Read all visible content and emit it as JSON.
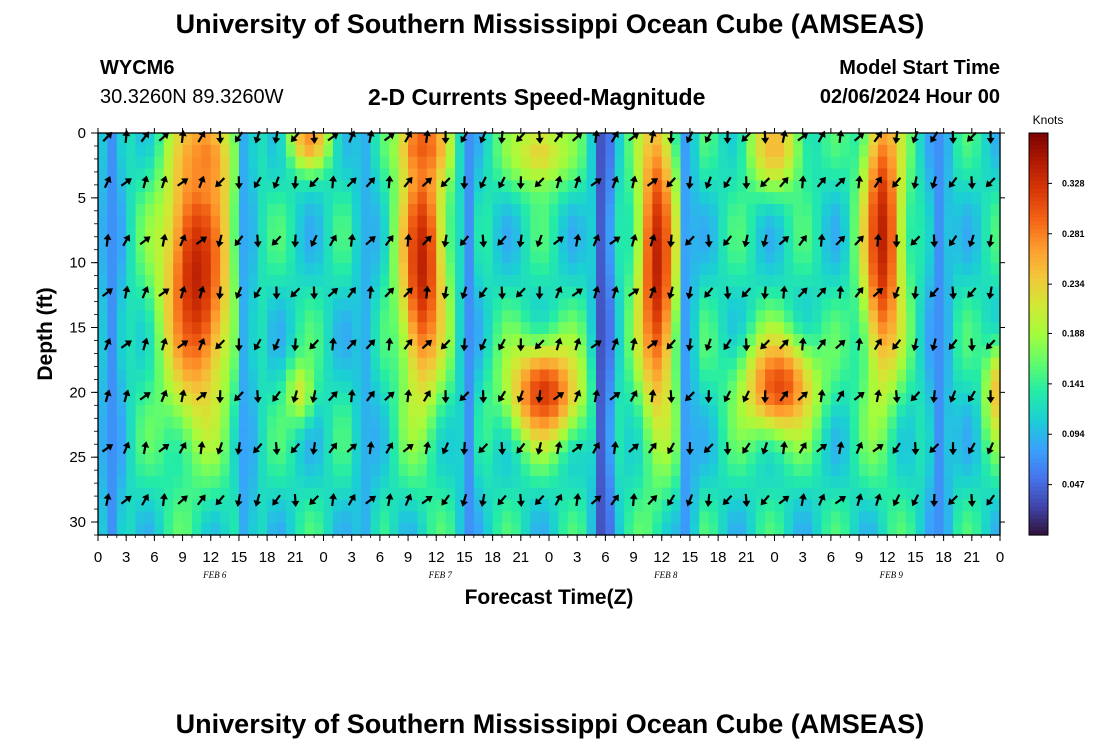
{
  "header": {
    "title": "University of Southern Mississippi Ocean Cube (AMSEAS)",
    "station_id": "WYCM6",
    "coords": "30.3260N  89.3260W",
    "plot_title": "2-D Currents Speed-Magnitude",
    "model_start_label": "Model Start Time",
    "model_start_value": "02/06/2024 Hour 00"
  },
  "footer": {
    "title": "University of Southern Mississippi Ocean Cube (AMSEAS)"
  },
  "chart_data": {
    "type": "heatmap",
    "title": "2-D Currents Speed-Magnitude",
    "xlabel": "Forecast Time(Z)",
    "ylabel": "Depth (ft)",
    "x_hours_range": [
      0,
      96
    ],
    "y_range": [
      0,
      31
    ],
    "x_tick_hours": [
      0,
      3,
      6,
      9,
      12,
      15,
      18,
      21,
      24,
      27,
      30,
      33,
      36,
      39,
      42,
      45,
      48,
      51,
      54,
      57,
      60,
      63,
      66,
      69,
      72,
      75,
      78,
      81,
      84,
      87,
      90,
      93,
      96
    ],
    "x_tick_labels": [
      "0",
      "3",
      "6",
      "9",
      "12",
      "15",
      "18",
      "21",
      "0",
      "3",
      "6",
      "9",
      "12",
      "15",
      "18",
      "21",
      "0",
      "3",
      "6",
      "9",
      "12",
      "15",
      "18",
      "21",
      "0",
      "3",
      "6",
      "9",
      "12",
      "15",
      "18",
      "21",
      "0"
    ],
    "date_labels": [
      {
        "hour": 12,
        "text": "FEB 6"
      },
      {
        "hour": 36,
        "text": "FEB 7"
      },
      {
        "hour": 60,
        "text": "FEB 8"
      },
      {
        "hour": 84,
        "text": "FEB 9"
      }
    ],
    "y_ticks": [
      0,
      5,
      10,
      15,
      20,
      25,
      30
    ],
    "colorbar": {
      "unit": "Knots",
      "range": [
        0,
        0.375
      ],
      "ticks": [
        0.047,
        0.094,
        0.141,
        0.188,
        0.234,
        0.281,
        0.328
      ],
      "colors": [
        "#30123b",
        "#4145ab",
        "#4675ed",
        "#39a2fc",
        "#1bcfd4",
        "#24eca6",
        "#61fc6c",
        "#a4fc3b",
        "#d1e834",
        "#f3c63a",
        "#fe9b2d",
        "#f36315",
        "#d93806",
        "#b11901",
        "#7a0403"
      ]
    },
    "hotspots": [
      {
        "hour": 10.5,
        "depth": 11,
        "rh": 3.8,
        "rd": 11.5,
        "value": 0.34
      },
      {
        "hour": 11.5,
        "depth": 2,
        "rh": 2.5,
        "rd": 4,
        "value": 0.28
      },
      {
        "hour": 22.5,
        "depth": 0.5,
        "rh": 2.2,
        "rd": 2.2,
        "value": 0.27
      },
      {
        "hour": 21.5,
        "depth": 20,
        "rh": 1.5,
        "rd": 2.5,
        "value": 0.21
      },
      {
        "hour": 34.5,
        "depth": 10,
        "rh": 2.5,
        "rd": 11,
        "value": 0.34
      },
      {
        "hour": 34.5,
        "depth": 1,
        "rh": 2.5,
        "rd": 2.5,
        "value": 0.3
      },
      {
        "hour": 47.5,
        "depth": 20,
        "rh": 4,
        "rd": 4,
        "value": 0.32
      },
      {
        "hour": 47,
        "depth": 1.5,
        "rh": 3.5,
        "rd": 3,
        "value": 0.23
      },
      {
        "hour": 59.5,
        "depth": 10,
        "rh": 2.1,
        "rd": 13,
        "value": 0.34
      },
      {
        "hour": 72.5,
        "depth": 19.5,
        "rh": 4,
        "rd": 4,
        "value": 0.31
      },
      {
        "hour": 72,
        "depth": 1,
        "rh": 3,
        "rd": 3.5,
        "value": 0.25
      },
      {
        "hour": 83.5,
        "depth": 8,
        "rh": 2.2,
        "rd": 12,
        "value": 0.34
      },
      {
        "hour": 95.5,
        "depth": 20,
        "rh": 1.2,
        "rd": 4,
        "value": 0.24
      }
    ],
    "lowbands": [
      {
        "hour": 1.5,
        "rh": 1.2,
        "value": 0.07
      },
      {
        "hour": 15.8,
        "rh": 1.0,
        "value": 0.08
      },
      {
        "hour": 28.5,
        "rh": 1.2,
        "value": 0.09
      },
      {
        "hour": 39.5,
        "rh": 0.9,
        "value": 0.07
      },
      {
        "hour": 53.8,
        "rh": 1.0,
        "value": 0.03
      },
      {
        "hour": 62.8,
        "rh": 0.8,
        "value": 0.07
      },
      {
        "hour": 89.5,
        "rh": 1.2,
        "value": 0.07
      }
    ],
    "arrow_depths": [
      0,
      3.5,
      8,
      12,
      16,
      20,
      24,
      28
    ],
    "arrow_hours_step": 2
  }
}
